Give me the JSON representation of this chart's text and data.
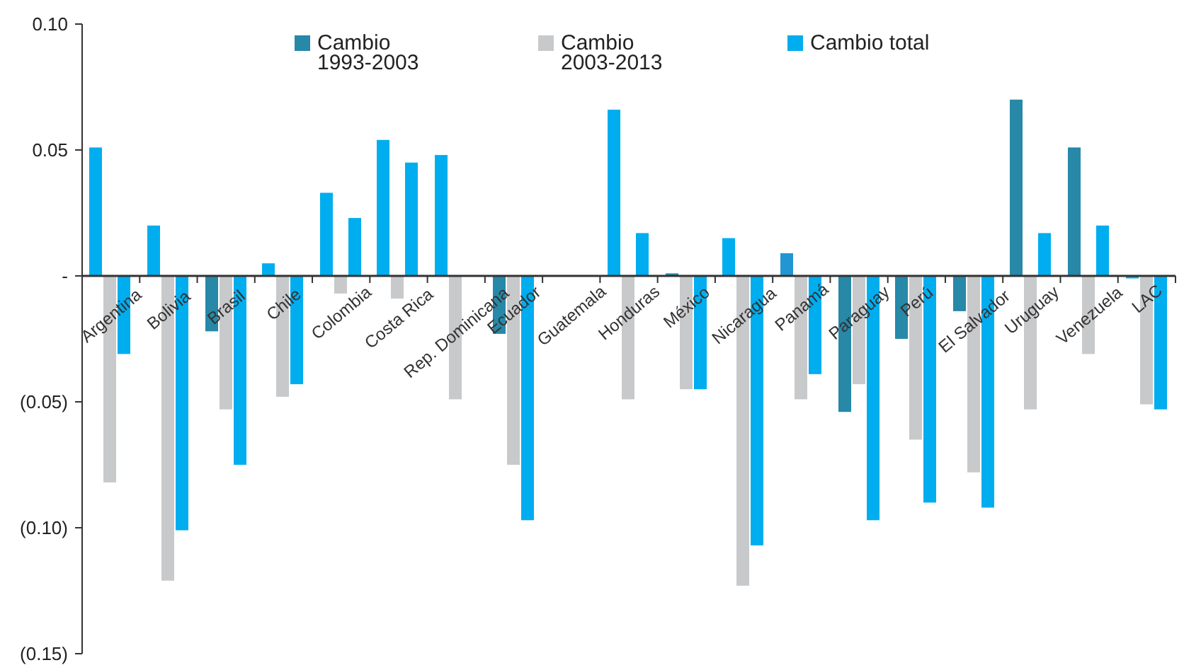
{
  "chart_data": {
    "type": "bar",
    "categories": [
      "Argentina",
      "Bolivia",
      "Brasil",
      "Chile",
      "Colombia",
      "Costa Rica",
      "Rep. Dominicana",
      "Ecuador",
      "Guatemala",
      "Honduras",
      "México",
      "Nicaragua",
      "Panamá",
      "Paraguay",
      "Perú",
      "El Salvador",
      "Uruguay",
      "Venezuela",
      "LAC"
    ],
    "series": [
      {
        "name": "Cambio\n1993-2003",
        "color": "#2788a8",
        "colors": [
          "#00aeef",
          "#00aeef",
          "#2788a8",
          "#00aeef",
          "#00aeef",
          "#00aeef",
          "#00aeef",
          "#2788a8",
          null,
          "#00aeef",
          "#2788a8",
          "#00aeef",
          "#2196d3",
          "#2788a8",
          "#2788a8",
          "#2788a8",
          "#2788a8",
          "#2788a8",
          "#00aeef"
        ],
        "values": [
          0.051,
          0.02,
          -0.022,
          0.005,
          0.033,
          0.054,
          0.048,
          -0.023,
          null,
          0.066,
          0.001,
          0.015,
          0.009,
          -0.054,
          -0.025,
          -0.014,
          0.07,
          0.051,
          -0.001
        ]
      },
      {
        "name": "Cambio\n2003-2013",
        "color": "#c8c9cb",
        "values": [
          -0.082,
          -0.121,
          -0.053,
          -0.048,
          -0.007,
          -0.009,
          -0.049,
          -0.075,
          null,
          -0.049,
          -0.045,
          -0.123,
          -0.049,
          -0.043,
          -0.065,
          -0.078,
          -0.053,
          -0.031,
          -0.051
        ]
      },
      {
        "name": "Cambio total",
        "color": "#00adef",
        "values": [
          -0.031,
          -0.101,
          -0.075,
          -0.043,
          0.023,
          0.045,
          null,
          -0.097,
          null,
          0.017,
          -0.045,
          -0.107,
          -0.039,
          -0.097,
          -0.09,
          -0.092,
          0.017,
          0.02,
          -0.053
        ]
      }
    ],
    "ylim": [
      -0.15,
      0.1
    ],
    "yticks": [
      {
        "value": 0.1,
        "label": "0.10"
      },
      0.05,
      {
        "value": 0,
        "label": "-"
      },
      {
        "value": -0.05,
        "label": "(0.05)"
      },
      {
        "value": -0.1,
        "label": "(0.10)"
      },
      {
        "value": -0.15,
        "label": "(0.15)"
      }
    ],
    "grid": false,
    "legend": "top"
  }
}
